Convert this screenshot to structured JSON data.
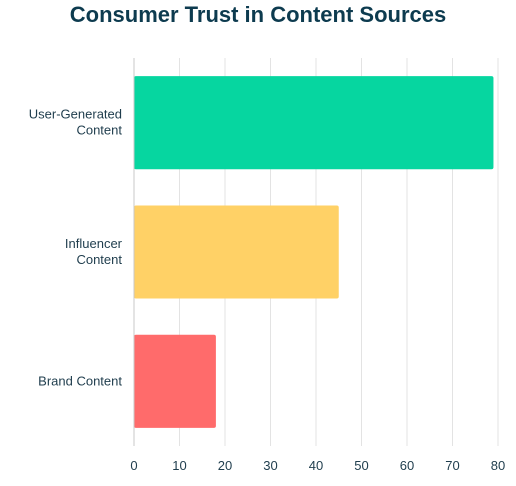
{
  "chart_data": {
    "type": "bar",
    "orientation": "horizontal",
    "title": "Consumer Trust in Content Sources",
    "xlabel": "",
    "ylabel": "",
    "categories": [
      [
        "User-Generated",
        "Content"
      ],
      [
        "Influencer",
        "Content"
      ],
      [
        "Brand Content"
      ]
    ],
    "values": [
      79,
      45,
      18
    ],
    "colors": [
      "#06d6a0",
      "#ffd166",
      "#ff6b6b"
    ],
    "xlim": [
      0,
      80
    ],
    "xticks": [
      "0",
      "10",
      "20",
      "30",
      "40",
      "50",
      "60",
      "70",
      "80"
    ],
    "grid": true,
    "legend": "none"
  }
}
